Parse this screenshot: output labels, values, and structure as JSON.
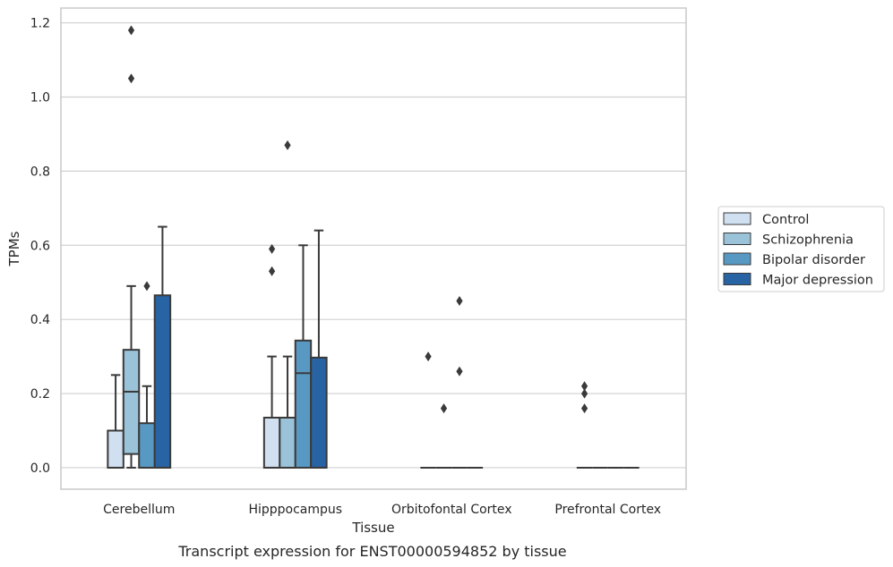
{
  "chart_data": {
    "type": "box",
    "caption": "Transcript expression for ENST00000594852 by tissue",
    "xlabel": "Tissue",
    "ylabel": "TPMs",
    "ylim": [
      -0.058,
      1.24
    ],
    "yticks": [
      0.0,
      0.2,
      0.4,
      0.6,
      0.8,
      1.0,
      1.2
    ],
    "ytick_labels": [
      "0.0",
      "0.2",
      "0.4",
      "0.6",
      "0.8",
      "1.0",
      "1.2"
    ],
    "grid": "horizontal",
    "legend_position": "right",
    "categories": [
      "Cerebellum",
      "Hipppocampus",
      "Orbitofontal Cortex",
      "Prefrontal Cortex"
    ],
    "series": [
      {
        "name": "Control",
        "color": "#d0e0f1",
        "boxes": [
          {
            "q1": 0.0,
            "median": 0.0,
            "q3": 0.1,
            "whisker_low": 0.0,
            "whisker_high": 0.25,
            "outliers": []
          },
          {
            "q1": 0.0,
            "median": 0.0,
            "q3": 0.135,
            "whisker_low": 0.0,
            "whisker_high": 0.3,
            "outliers": [
              0.53,
              0.59
            ]
          },
          {
            "q1": 0.0,
            "median": 0.0,
            "q3": 0.0,
            "whisker_low": 0.0,
            "whisker_high": 0.0,
            "outliers": [
              0.3
            ]
          },
          {
            "q1": 0.0,
            "median": 0.0,
            "q3": 0.0,
            "whisker_low": 0.0,
            "whisker_high": 0.0,
            "outliers": [
              0.16,
              0.2,
              0.22
            ]
          }
        ]
      },
      {
        "name": "Schizophrenia",
        "color": "#9ac3da",
        "boxes": [
          {
            "q1": 0.037,
            "median": 0.205,
            "q3": 0.318,
            "whisker_low": 0.0,
            "whisker_high": 0.49,
            "outliers": [
              1.05,
              1.18
            ]
          },
          {
            "q1": 0.0,
            "median": 0.0,
            "q3": 0.135,
            "whisker_low": 0.0,
            "whisker_high": 0.3,
            "outliers": [
              0.87
            ]
          },
          {
            "q1": 0.0,
            "median": 0.0,
            "q3": 0.0,
            "whisker_low": 0.0,
            "whisker_high": 0.0,
            "outliers": [
              0.16
            ]
          },
          {
            "q1": 0.0,
            "median": 0.0,
            "q3": 0.0,
            "whisker_low": 0.0,
            "whisker_high": 0.0,
            "outliers": []
          }
        ]
      },
      {
        "name": "Bipolar disorder",
        "color": "#5899c4",
        "boxes": [
          {
            "q1": 0.0,
            "median": 0.0,
            "q3": 0.12,
            "whisker_low": 0.0,
            "whisker_high": 0.22,
            "outliers": [
              0.49
            ]
          },
          {
            "q1": 0.0,
            "median": 0.255,
            "q3": 0.343,
            "whisker_low": 0.0,
            "whisker_high": 0.6,
            "outliers": []
          },
          {
            "q1": 0.0,
            "median": 0.0,
            "q3": 0.0,
            "whisker_low": 0.0,
            "whisker_high": 0.0,
            "outliers": [
              0.26,
              0.45
            ]
          },
          {
            "q1": 0.0,
            "median": 0.0,
            "q3": 0.0,
            "whisker_low": 0.0,
            "whisker_high": 0.0,
            "outliers": []
          }
        ]
      },
      {
        "name": "Major depression",
        "color": "#2864a4",
        "boxes": [
          {
            "q1": 0.0,
            "median": 0.0,
            "q3": 0.465,
            "whisker_low": 0.0,
            "whisker_high": 0.65,
            "outliers": []
          },
          {
            "q1": 0.0,
            "median": 0.0,
            "q3": 0.297,
            "whisker_low": 0.0,
            "whisker_high": 0.64,
            "outliers": []
          },
          {
            "q1": 0.0,
            "median": 0.0,
            "q3": 0.0,
            "whisker_low": 0.0,
            "whisker_high": 0.0,
            "outliers": []
          },
          {
            "q1": 0.0,
            "median": 0.0,
            "q3": 0.0,
            "whisker_low": 0.0,
            "whisker_high": 0.0,
            "outliers": []
          }
        ]
      }
    ]
  }
}
